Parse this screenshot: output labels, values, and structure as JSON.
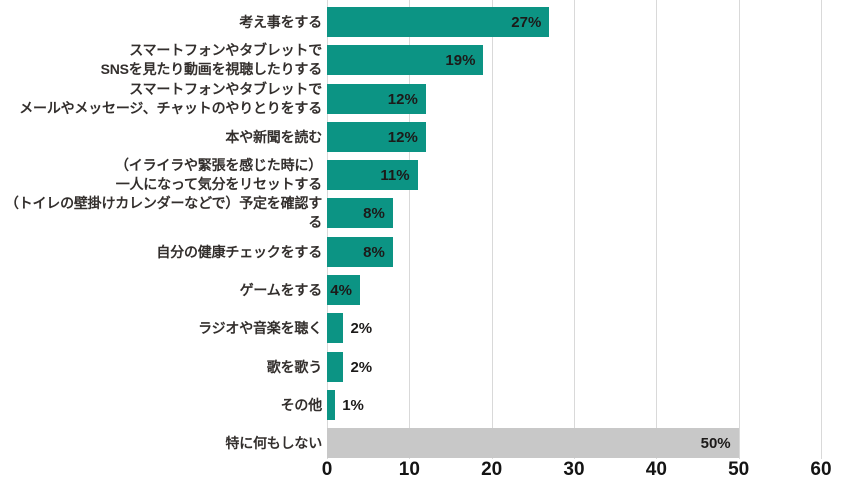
{
  "colors": {
    "bar_teal": "#0c9484",
    "bar_gray": "#c8c8c8",
    "gridline": "#d9d9d9",
    "label_text": "#332f2d",
    "value_text": "#1c1a19",
    "axis_text": "#141414",
    "background": "#ffffff"
  },
  "chart_data": {
    "type": "bar",
    "orientation": "horizontal",
    "title": "",
    "xlabel": "",
    "ylabel": "",
    "xlim": [
      0,
      60
    ],
    "xticks": [
      0,
      10,
      20,
      30,
      40,
      50,
      60
    ],
    "grid": "vertical",
    "categories": [
      "考え事をする",
      "スマートフォンやタブレットで\nSNSを見たり動画を視聴したりする",
      "スマートフォンやタブレットで\nメールやメッセージ、チャットのやりとりをする",
      "本や新聞を読む",
      "（イライラや緊張を感じた時に）\n一人になって気分をリセットする",
      "（トイレの壁掛けカレンダーなどで）予定を確認する",
      "自分の健康チェックをする",
      "ゲームをする",
      "ラジオや音楽を聴く",
      "歌を歌う",
      "その他",
      "特に何もしない"
    ],
    "values": [
      27,
      19,
      12,
      12,
      11,
      8,
      8,
      4,
      2,
      2,
      1,
      50
    ],
    "value_labels": [
      "27%",
      "19%",
      "12%",
      "12%",
      "11%",
      "8%",
      "8%",
      "4%",
      "2%",
      "2%",
      "1%",
      "50%"
    ],
    "gray_bar_index": 11,
    "legend": null
  }
}
